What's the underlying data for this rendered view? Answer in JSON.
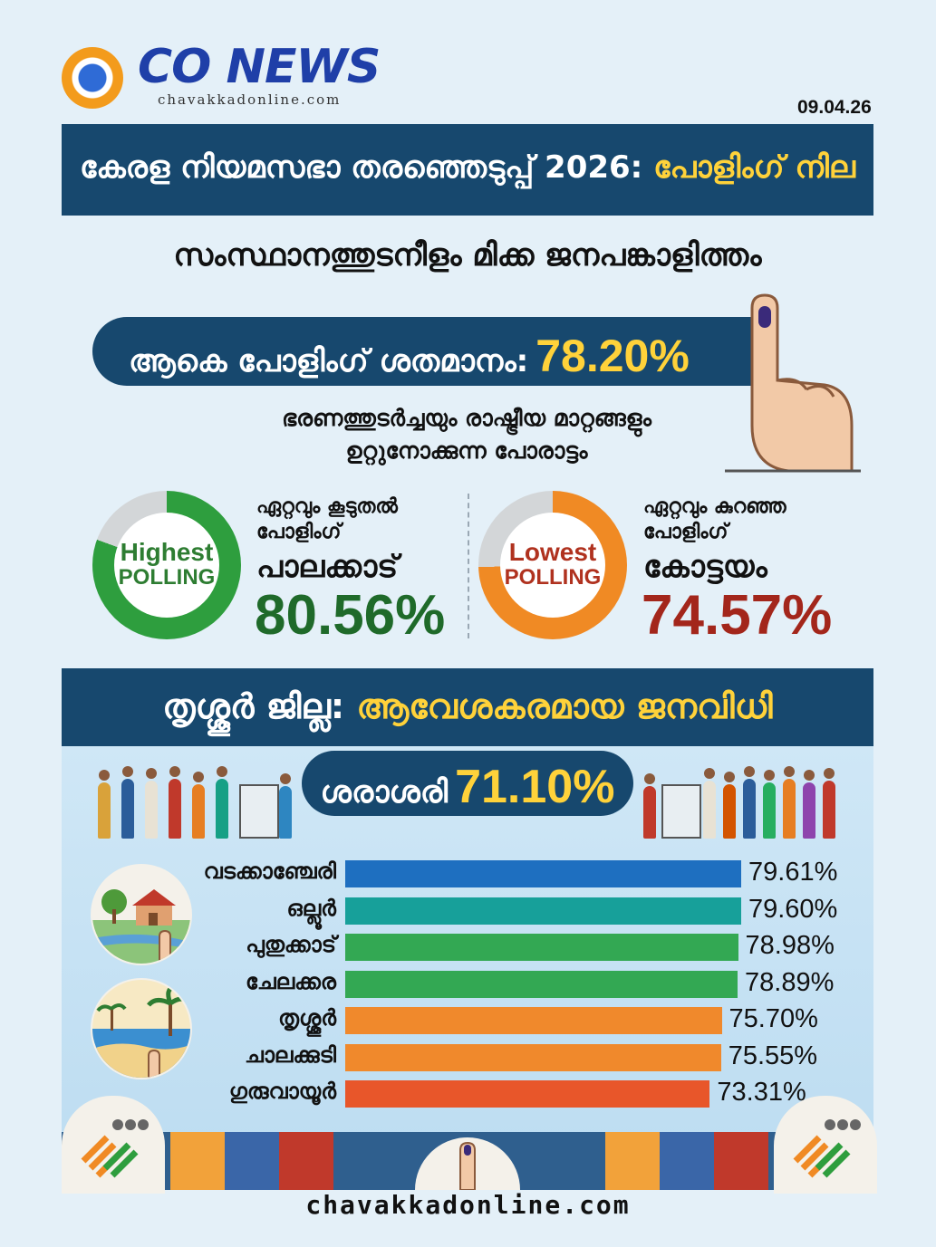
{
  "brand": {
    "name": "CO NEWS",
    "site": "chavakkadonline.com"
  },
  "date": "09.04.26",
  "headline": {
    "main": "കേരള നിയമസഭാ തരഞ്ഞെടുപ്പ് 2026:",
    "highlight": "പോളിംഗ് നില"
  },
  "subheadline": "സംസ്ഥാനത്തുടനീളം മിക്ക ജനപങ്കാളിത്തം",
  "total": {
    "label": "ആകെ പോളിംഗ് ശതമാനം:",
    "value": "78.20%",
    "percent": 78.2
  },
  "tagline": {
    "line1": "ഭരണത്തുടർച്ചയും രാഷ്ട്രീയ മാറ്റങ്ങളും",
    "line2": "ഉറ്റുനോക്കുന്ന പോരാട്ടം"
  },
  "highest": {
    "badge_line1": "Highest",
    "badge_line2": "POLLING",
    "label_line1": "ഏറ്റവും കൂടുതൽ",
    "label_line2": "പോളിംഗ്",
    "place": "പാലക്കാട്",
    "value": "80.56%",
    "percent": 80.56,
    "color": "#2e9e3e"
  },
  "lowest": {
    "badge_line1": "Lowest",
    "badge_line2": "POLLING",
    "label_line1": "ഏറ്റവും കുറഞ്ഞ",
    "label_line2": "പോളിംഗ്",
    "place": "കോട്ടയം",
    "value": "74.57%",
    "percent": 74.57,
    "color": "#f08a24",
    "value_color": "#a3261b"
  },
  "district": {
    "name": "തൃശ്ശൂർ ജില്ല:",
    "highlight": "ആവേശകരമായ ജനവിധി",
    "average_label": "ശരാശരി",
    "average_value": "71.10%"
  },
  "chart_data": {
    "type": "bar",
    "orientation": "horizontal",
    "categories": [
      "വടക്കാഞ്ചേരി",
      "ഒല്ലൂർ",
      "പുതുക്കാട്",
      "ചേലക്കര",
      "തൃശ്ശൂർ",
      "ചാലക്കുടി",
      "ഗുരുവായൂർ"
    ],
    "values": [
      79.61,
      79.6,
      78.98,
      78.89,
      75.7,
      75.55,
      73.31
    ],
    "labels": [
      "79.61%",
      "79.60%",
      "78.98%",
      "78.89%",
      "75.70%",
      "75.55%",
      "73.31%"
    ],
    "colors": [
      "#1e6fc0",
      "#17a09a",
      "#33a853",
      "#33a853",
      "#f0892c",
      "#f0892c",
      "#e8562a"
    ],
    "title": "",
    "xlabel": "",
    "ylabel": ""
  },
  "footer": "chavakkadonline.com"
}
